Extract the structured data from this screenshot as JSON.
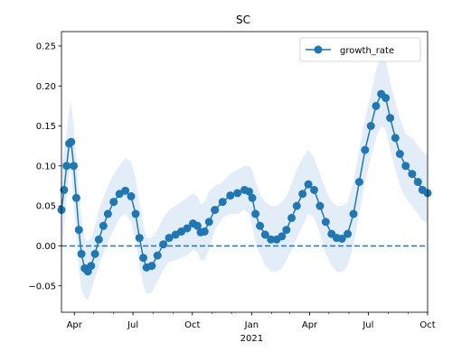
{
  "chart_data": {
    "type": "line",
    "title": "SC",
    "xlabel": "",
    "ylabel": "",
    "x_range": [
      "2020-03-12",
      "2021-10-01"
    ],
    "ylim": [
      -0.083,
      0.268
    ],
    "y_ticks": [
      -0.05,
      0.0,
      0.05,
      0.1,
      0.15,
      0.2,
      0.25
    ],
    "y_tick_labels": [
      "−0.05",
      "0.00",
      "0.05",
      "0.10",
      "0.15",
      "0.20",
      "0.25"
    ],
    "x_ticks": [
      {
        "date": "2020-04-01",
        "label": "Apr",
        "sublabel": ""
      },
      {
        "date": "2020-07-01",
        "label": "Jul",
        "sublabel": ""
      },
      {
        "date": "2020-10-01",
        "label": "Oct",
        "sublabel": ""
      },
      {
        "date": "2021-01-01",
        "label": "Jan",
        "sublabel": "2021"
      },
      {
        "date": "2021-04-01",
        "label": "Apr",
        "sublabel": ""
      },
      {
        "date": "2021-07-01",
        "label": "Jul",
        "sublabel": ""
      },
      {
        "date": "2021-10-01",
        "label": "Oct",
        "sublabel": ""
      }
    ],
    "legend": {
      "position": "top-right",
      "entries": [
        "growth_rate"
      ]
    },
    "reference_line": {
      "y": 0,
      "style": "dashed"
    },
    "colors": {
      "line": "#1f77b4",
      "band": "#dce8f5"
    },
    "series": [
      {
        "name": "growth_rate",
        "marker": "circle",
        "points": [
          [
            "2020-03-12",
            0.045
          ],
          [
            "2020-03-16",
            0.07
          ],
          [
            "2020-03-20",
            0.1
          ],
          [
            "2020-03-24",
            0.128
          ],
          [
            "2020-03-27",
            0.13
          ],
          [
            "2020-03-31",
            0.1
          ],
          [
            "2020-04-04",
            0.06
          ],
          [
            "2020-04-08",
            0.02
          ],
          [
            "2020-04-12",
            -0.01
          ],
          [
            "2020-04-17",
            -0.028
          ],
          [
            "2020-04-22",
            -0.032
          ],
          [
            "2020-04-27",
            -0.025
          ],
          [
            "2020-05-03",
            -0.01
          ],
          [
            "2020-05-09",
            0.008
          ],
          [
            "2020-05-16",
            0.025
          ],
          [
            "2020-05-23",
            0.04
          ],
          [
            "2020-06-01",
            0.055
          ],
          [
            "2020-06-10",
            0.065
          ],
          [
            "2020-06-19",
            0.069
          ],
          [
            "2020-06-28",
            0.062
          ],
          [
            "2020-07-05",
            0.04
          ],
          [
            "2020-07-11",
            0.01
          ],
          [
            "2020-07-17",
            -0.015
          ],
          [
            "2020-07-22",
            -0.027
          ],
          [
            "2020-07-30",
            -0.025
          ],
          [
            "2020-08-08",
            -0.012
          ],
          [
            "2020-08-17",
            0.002
          ],
          [
            "2020-08-26",
            0.01
          ],
          [
            "2020-09-05",
            0.014
          ],
          [
            "2020-09-14",
            0.018
          ],
          [
            "2020-09-23",
            0.022
          ],
          [
            "2020-10-02",
            0.028
          ],
          [
            "2020-10-09",
            0.025
          ],
          [
            "2020-10-14",
            0.017
          ],
          [
            "2020-10-20",
            0.018
          ],
          [
            "2020-10-27",
            0.03
          ],
          [
            "2020-11-05",
            0.045
          ],
          [
            "2020-11-17",
            0.055
          ],
          [
            "2020-11-29",
            0.063
          ],
          [
            "2020-12-10",
            0.066
          ],
          [
            "2020-12-21",
            0.07
          ],
          [
            "2020-12-28",
            0.068
          ],
          [
            "2021-01-02",
            0.06
          ],
          [
            "2021-01-07",
            0.04
          ],
          [
            "2021-01-14",
            0.025
          ],
          [
            "2021-01-22",
            0.014
          ],
          [
            "2021-01-31",
            0.008
          ],
          [
            "2021-02-09",
            0.008
          ],
          [
            "2021-02-17",
            0.012
          ],
          [
            "2021-02-24",
            0.02
          ],
          [
            "2021-03-04",
            0.035
          ],
          [
            "2021-03-12",
            0.05
          ],
          [
            "2021-03-21",
            0.065
          ],
          [
            "2021-03-30",
            0.077
          ],
          [
            "2021-04-08",
            0.07
          ],
          [
            "2021-04-17",
            0.05
          ],
          [
            "2021-04-26",
            0.03
          ],
          [
            "2021-05-05",
            0.015
          ],
          [
            "2021-05-13",
            0.01
          ],
          [
            "2021-05-21",
            0.009
          ],
          [
            "2021-05-30",
            0.015
          ],
          [
            "2021-06-08",
            0.04
          ],
          [
            "2021-06-17",
            0.08
          ],
          [
            "2021-06-26",
            0.12
          ],
          [
            "2021-07-05",
            0.15
          ],
          [
            "2021-07-13",
            0.175
          ],
          [
            "2021-07-21",
            0.19
          ],
          [
            "2021-07-28",
            0.185
          ],
          [
            "2021-08-04",
            0.16
          ],
          [
            "2021-08-12",
            0.135
          ],
          [
            "2021-08-19",
            0.115
          ],
          [
            "2021-08-28",
            0.1
          ],
          [
            "2021-09-07",
            0.09
          ],
          [
            "2021-09-16",
            0.08
          ],
          [
            "2021-09-23",
            0.07
          ],
          [
            "2021-10-01",
            0.066
          ]
        ],
        "band_lower": [
          -0.005,
          0.02,
          0.06,
          0.09,
          0.095,
          0.05,
          0.01,
          -0.03,
          -0.055,
          -0.065,
          -0.068,
          -0.055,
          -0.04,
          -0.025,
          -0.01,
          0.005,
          0.02,
          0.035,
          0.04,
          0.03,
          0.005,
          -0.025,
          -0.05,
          -0.06,
          -0.058,
          -0.045,
          -0.03,
          -0.02,
          -0.018,
          -0.015,
          -0.012,
          -0.005,
          -0.008,
          -0.018,
          -0.018,
          -0.005,
          0.02,
          0.035,
          0.04,
          0.04,
          0.045,
          0.04,
          0.025,
          0.005,
          -0.01,
          -0.025,
          -0.032,
          -0.032,
          -0.028,
          -0.018,
          -0.005,
          0.01,
          0.025,
          0.04,
          0.035,
          0.015,
          -0.01,
          -0.025,
          -0.032,
          -0.033,
          -0.025,
          0.0,
          0.04,
          0.08,
          0.11,
          0.135,
          0.15,
          0.145,
          0.12,
          0.095,
          0.075,
          0.06,
          0.05,
          0.04,
          0.032,
          0.028
        ],
        "band_upper": [
          0.095,
          0.12,
          0.14,
          0.17,
          0.18,
          0.15,
          0.11,
          0.07,
          0.035,
          0.01,
          0.005,
          0.01,
          0.025,
          0.045,
          0.06,
          0.075,
          0.09,
          0.1,
          0.11,
          0.105,
          0.085,
          0.055,
          0.025,
          0.01,
          0.01,
          0.02,
          0.035,
          0.045,
          0.05,
          0.055,
          0.06,
          0.066,
          0.062,
          0.052,
          0.055,
          0.068,
          0.075,
          0.08,
          0.09,
          0.095,
          0.1,
          0.1,
          0.095,
          0.08,
          0.065,
          0.055,
          0.05,
          0.05,
          0.055,
          0.062,
          0.078,
          0.095,
          0.11,
          0.12,
          0.11,
          0.09,
          0.07,
          0.055,
          0.05,
          0.05,
          0.055,
          0.08,
          0.12,
          0.16,
          0.19,
          0.22,
          0.238,
          0.232,
          0.205,
          0.18,
          0.16,
          0.14,
          0.135,
          0.125,
          0.118,
          0.112
        ]
      }
    ]
  }
}
